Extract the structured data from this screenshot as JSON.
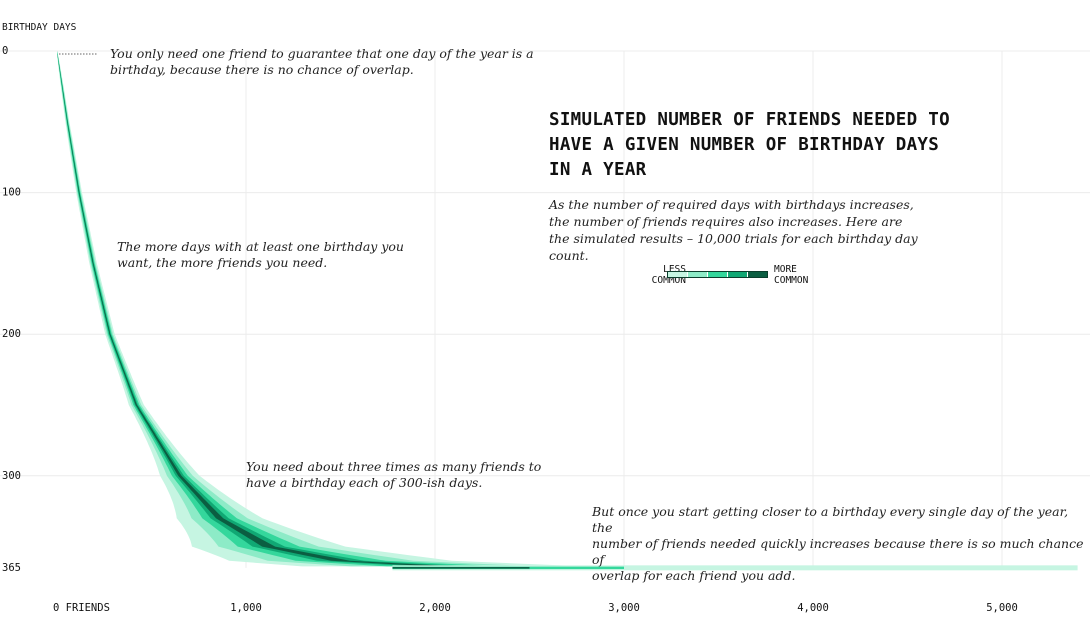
{
  "chart_data": {
    "type": "heatmap",
    "title": "SIMULATED NUMBER OF FRIENDS NEEDED TO HAVE A GIVEN NUMBER OF BIRTHDAY DAYS IN A YEAR",
    "subtitle": "As the number of required days with birthdays increases, the number of friends requires also increases. Here are the simulated results – 10,000 trials for each birthday day count.",
    "ylabel": "BIRTHDAY DAYS",
    "x_ticks": [
      {
        "value": 0,
        "label": "0 FRIENDS"
      },
      {
        "value": 1000,
        "label": "1,000"
      },
      {
        "value": 2000,
        "label": "2,000"
      },
      {
        "value": 3000,
        "label": "3,000"
      },
      {
        "value": 4000,
        "label": "4,000"
      },
      {
        "value": 5000,
        "label": "5,000"
      }
    ],
    "y_ticks": [
      {
        "value": 0,
        "label": "0"
      },
      {
        "value": 100,
        "label": "100"
      },
      {
        "value": 200,
        "label": "200"
      },
      {
        "value": 300,
        "label": "300"
      },
      {
        "value": 365,
        "label": "365"
      }
    ],
    "xlim": [
      0,
      5400
    ],
    "ylim": [
      0,
      365
    ],
    "y_inverted": true,
    "grid": true,
    "trials_per_day_count": 10000,
    "median_curve": [
      {
        "days": 0,
        "friends": 0
      },
      {
        "days": 50,
        "friends": 55
      },
      {
        "days": 100,
        "friends": 117
      },
      {
        "days": 150,
        "friends": 191
      },
      {
        "days": 200,
        "friends": 280
      },
      {
        "days": 250,
        "friends": 420
      },
      {
        "days": 300,
        "friends": 650
      },
      {
        "days": 330,
        "friends": 860
      },
      {
        "days": 350,
        "friends": 1120
      },
      {
        "days": 360,
        "friends": 1500
      },
      {
        "days": 364,
        "friends": 2050
      },
      {
        "days": 365,
        "friends": 2400
      }
    ],
    "max_friends_observed": 5400,
    "legend": {
      "low_label": [
        "LESS",
        "COMMON"
      ],
      "high_label": [
        "MORE",
        "COMMON"
      ],
      "colors": [
        "#c6f5e2",
        "#8debc7",
        "#34d79c",
        "#10a874",
        "#0b5e42"
      ]
    },
    "annotations": [
      {
        "id": "one-friend",
        "text": [
          "You only need one friend to guarantee that one day of the year is a",
          "birthday, because there is no chance of overlap."
        ]
      },
      {
        "id": "more-days",
        "text": [
          "The more days with at least one birthday you",
          "want, the more friends you need."
        ]
      },
      {
        "id": "three-times",
        "text": [
          "You need about three times as many friends to",
          "have a birthday each of 300-ish days."
        ]
      },
      {
        "id": "closer",
        "text": [
          "But once you start getting closer to a birthday every single day of the year, the",
          "number of friends needed quickly increases because there is so much chance of",
          "overlap for each friend you add."
        ]
      }
    ]
  }
}
